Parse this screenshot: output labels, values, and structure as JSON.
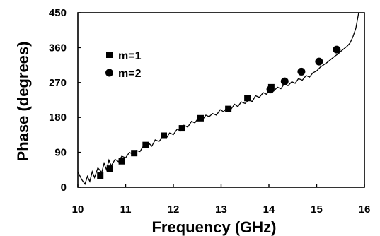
{
  "chart_data": {
    "type": "scatter",
    "xlabel": "Frequency (GHz)",
    "ylabel": "Phase (degrees)",
    "xlim": [
      10,
      16
    ],
    "ylim": [
      0,
      450
    ],
    "xticks": [
      10,
      11,
      12,
      13,
      14,
      15,
      16
    ],
    "yticks": [
      0,
      90,
      180,
      270,
      360,
      450
    ],
    "grid": false,
    "legend_position": "upper-left",
    "series": [
      {
        "name": "m=1",
        "marker": "square",
        "x": [
          10.47,
          10.67,
          10.92,
          11.18,
          11.42,
          11.8,
          12.18,
          12.57,
          13.15,
          13.55,
          14.05
        ],
        "y": [
          30,
          48,
          67,
          88,
          109,
          133,
          152,
          178,
          202,
          230,
          258
        ]
      },
      {
        "name": "m=2",
        "marker": "circle",
        "x": [
          14.03,
          14.33,
          14.68,
          15.05,
          15.42
        ],
        "y": [
          252,
          273,
          298,
          324,
          355
        ]
      },
      {
        "name": "",
        "marker": "line",
        "x": [
          10.0,
          10.08,
          10.15,
          10.2,
          10.25,
          10.3,
          10.35,
          10.42,
          10.5,
          10.55,
          10.6,
          10.65,
          10.7,
          10.78,
          10.85,
          10.92,
          11.0,
          11.08,
          11.15,
          11.22,
          11.3,
          11.38,
          11.45,
          11.5,
          11.55,
          11.62,
          11.7,
          11.78,
          11.85,
          11.92,
          12.0,
          12.08,
          12.15,
          12.22,
          12.3,
          12.38,
          12.45,
          12.52,
          12.6,
          12.68,
          12.75,
          12.82,
          12.9,
          12.98,
          13.05,
          13.12,
          13.2,
          13.28,
          13.35,
          13.42,
          13.5,
          13.58,
          13.65,
          13.72,
          13.8,
          13.88,
          13.95,
          14.02,
          14.1,
          14.18,
          14.25,
          14.32,
          14.4,
          14.48,
          14.55,
          14.62,
          14.7,
          14.78,
          14.85,
          14.92,
          15.0,
          15.08,
          15.15,
          15.22,
          15.3,
          15.38,
          15.45,
          15.52,
          15.58,
          15.64,
          15.7,
          15.76,
          15.82,
          15.88
        ],
        "y": [
          40,
          20,
          8,
          28,
          15,
          40,
          25,
          50,
          38,
          62,
          45,
          70,
          55,
          72,
          66,
          80,
          76,
          90,
          85,
          95,
          92,
          108,
          102,
          112,
          106,
          122,
          118,
          130,
          126,
          140,
          136,
          150,
          145,
          160,
          155,
          170,
          166,
          178,
          172,
          186,
          182,
          190,
          186,
          200,
          195,
          205,
          200,
          214,
          208,
          220,
          216,
          226,
          221,
          236,
          232,
          244,
          240,
          250,
          248,
          258,
          254,
          266,
          262,
          272,
          268,
          280,
          276,
          288,
          284,
          295,
          300,
          310,
          316,
          322,
          330,
          338,
          344,
          352,
          358,
          364,
          372,
          388,
          410,
          450
        ]
      }
    ]
  }
}
